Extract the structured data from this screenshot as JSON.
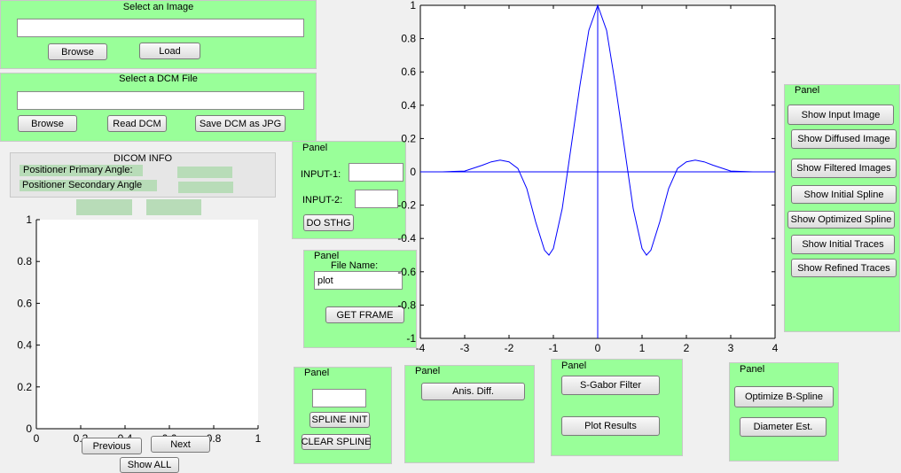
{
  "image_panel": {
    "title": "Select an Image",
    "path_value": "",
    "browse_label": "Browse",
    "load_label": "Load"
  },
  "dcm_panel": {
    "title": "Select a DCM File",
    "path_value": "",
    "browse_label": "Browse",
    "read_label": "Read DCM",
    "save_label": "Save DCM as JPG"
  },
  "dicom_info": {
    "title": "DICOM INFO",
    "primary_label": "Positioner Primary Angle:",
    "secondary_label": "Positioner Secondary Angle"
  },
  "input_panel": {
    "title": "Panel",
    "input1_label": "INPUT-1:",
    "input2_label": "INPUT-2:",
    "input1_value": "",
    "input2_value": "",
    "do_label": "DO STHG"
  },
  "frame_panel": {
    "title": "Panel",
    "file_name_label": "File Name:",
    "file_name_value": "plot",
    "get_frame_label": "GET FRAME"
  },
  "spline_panel": {
    "title": "Panel",
    "value": "",
    "init_label": "SPLINE INIT",
    "clear_label": "CLEAR SPLINE"
  },
  "anis_panel": {
    "title": "Panel",
    "anis_label": "Anis. Diff."
  },
  "gabor_panel": {
    "title": "Panel",
    "gabor_label": "S-Gabor Filter",
    "plot_label": "Plot Results"
  },
  "bspline_panel": {
    "title": "Panel",
    "optimize_label": "Optimize B-Spline",
    "diameter_label": "Diameter Est."
  },
  "show_panel": {
    "title": "Panel",
    "buttons": [
      "Show Input Image",
      "Show Diffused Image",
      "Show Filtered Images",
      "Show Initial Spline",
      "Show Optimized Spline",
      "Show Initial Traces",
      "Show Refined Traces"
    ]
  },
  "nav": {
    "previous_label": "Previous",
    "next_label": "Next",
    "show_all_label": "Show ALL"
  },
  "colors": {
    "panel": "#99ff99",
    "plot_line": "#0000ff",
    "background": "#f0f0f0"
  },
  "chart_data": [
    {
      "type": "line",
      "title": "",
      "xlabel": "",
      "ylabel": "",
      "xlim": [
        -4,
        4
      ],
      "ylim": [
        -1,
        1
      ],
      "xticks": [
        "-4",
        "-3",
        "-2",
        "-1",
        "0",
        "1",
        "2",
        "3",
        "4"
      ],
      "yticks": [
        "-1",
        "-0.8",
        "-0.6",
        "-0.4",
        "-0.2",
        "0",
        "0.2",
        "0.4",
        "0.6",
        "0.8",
        "1"
      ],
      "series": [
        {
          "x": [
            -3.9,
            -3.5,
            -3.0,
            -2.6,
            -2.4,
            -2.2,
            -2.0,
            -1.8,
            -1.6,
            -1.4,
            -1.2,
            -1.1,
            -1.0,
            -0.8,
            -0.6,
            -0.4,
            -0.2,
            0,
            0.2,
            0.4,
            0.6,
            0.8,
            1.0,
            1.1,
            1.2,
            1.4,
            1.6,
            1.8,
            2.0,
            2.2,
            2.4,
            2.6,
            3.0,
            3.5,
            3.8
          ],
          "y": [
            0,
            0,
            0.005,
            0.04,
            0.06,
            0.07,
            0.06,
            0.02,
            -0.1,
            -0.3,
            -0.47,
            -0.5,
            -0.46,
            -0.22,
            0.15,
            0.52,
            0.85,
            1.0,
            0.85,
            0.52,
            0.15,
            -0.22,
            -0.46,
            -0.5,
            -0.47,
            -0.3,
            -0.1,
            0.02,
            0.06,
            0.07,
            0.06,
            0.04,
            0.005,
            0,
            0
          ]
        }
      ],
      "crosshair": {
        "x": 0,
        "y": 0
      }
    },
    {
      "type": "line",
      "title": "",
      "xlabel": "",
      "ylabel": "",
      "xlim": [
        0,
        1
      ],
      "ylim": [
        0,
        1
      ],
      "xticks": [
        "0",
        "0.2",
        "0.4",
        "0.6",
        "0.8",
        "1"
      ],
      "yticks": [
        "0",
        "0.2",
        "0.4",
        "0.6",
        "0.8",
        "1"
      ],
      "series": []
    }
  ]
}
